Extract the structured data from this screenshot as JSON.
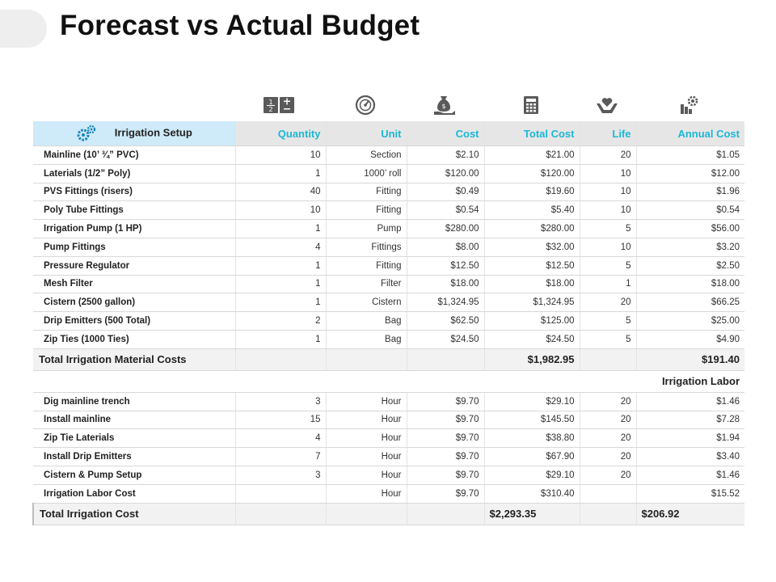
{
  "title": "Forecast vs Actual Budget",
  "header": {
    "first": "Irrigation Setup",
    "columns": [
      "Quantity",
      "Unit",
      "Cost",
      "Total Cost",
      "Life",
      "Annual Cost"
    ]
  },
  "icons": [
    "fraction-calculator-icon",
    "gauge-icon",
    "money-hand-icon",
    "calculator-icon",
    "heart-hand-icon",
    "gear-settings-icon"
  ],
  "materials": [
    {
      "name": "Mainline (10’ ¾” PVC)",
      "qty": "10",
      "unit": "Section",
      "cost": "$2.10",
      "total": "$21.00",
      "life": "20",
      "annual": "$1.05"
    },
    {
      "name": "Laterials (1/2” Poly)",
      "qty": "1",
      "unit": "1000’ roll",
      "cost": "$120.00",
      "total": "$120.00",
      "life": "10",
      "annual": "$12.00"
    },
    {
      "name": "PVS Fittings  (risers)",
      "qty": "40",
      "unit": "Fitting",
      "cost": "$0.49",
      "total": "$19.60",
      "life": "10",
      "annual": "$1.96"
    },
    {
      "name": "Poly Tube Fittings",
      "qty": "10",
      "unit": "Fitting",
      "cost": "$0.54",
      "total": "$5.40",
      "life": "10",
      "annual": "$0.54"
    },
    {
      "name": "Irrigation Pump (1 HP)",
      "qty": "1",
      "unit": "Pump",
      "cost": "$280.00",
      "total": "$280.00",
      "life": "5",
      "annual": "$56.00"
    },
    {
      "name": "Pump Fittings",
      "qty": "4",
      "unit": "Fittings",
      "cost": "$8.00",
      "total": "$32.00",
      "life": "10",
      "annual": "$3.20"
    },
    {
      "name": "Pressure Regulator",
      "qty": "1",
      "unit": "Fitting",
      "cost": "$12.50",
      "total": "$12.50",
      "life": "5",
      "annual": "$2.50"
    },
    {
      "name": "Mesh Filter",
      "qty": "1",
      "unit": "Filter",
      "cost": "$18.00",
      "total": "$18.00",
      "life": "1",
      "annual": "$18.00"
    },
    {
      "name": "Cistern  (2500 gallon)",
      "qty": "1",
      "unit": "Cistern",
      "cost": "$1,324.95",
      "total": "$1,324.95",
      "life": "20",
      "annual": "$66.25"
    },
    {
      "name": "Drip Emitters  (500 Total)",
      "qty": "2",
      "unit": "Bag",
      "cost": "$62.50",
      "total": "$125.00",
      "life": "5",
      "annual": "$25.00"
    },
    {
      "name": "Zip Ties  (1000 Ties)",
      "qty": "1",
      "unit": "Bag",
      "cost": "$24.50",
      "total": "$24.50",
      "life": "5",
      "annual": "$4.90"
    }
  ],
  "material_total": {
    "label": "Total Irrigation Material Costs",
    "total": "$1,982.95",
    "annual": "$191.40"
  },
  "labor_section": "Irrigation Labor",
  "labor": [
    {
      "name": "Dig mainline trench",
      "qty": "3",
      "unit": "Hour",
      "cost": "$9.70",
      "total": "$29.10",
      "life": "20",
      "annual": "$1.46"
    },
    {
      "name": "Install mainline",
      "qty": "15",
      "unit": "Hour",
      "cost": "$9.70",
      "total": "$145.50",
      "life": "20",
      "annual": "$7.28"
    },
    {
      "name": "Zip Tie Laterials",
      "qty": "4",
      "unit": "Hour",
      "cost": "$9.70",
      "total": "$38.80",
      "life": "20",
      "annual": "$1.94"
    },
    {
      "name": "Install Drip Emitters",
      "qty": "7",
      "unit": "Hour",
      "cost": "$9.70",
      "total": "$67.90",
      "life": "20",
      "annual": "$3.40"
    },
    {
      "name": "Cistern & Pump Setup",
      "qty": "3",
      "unit": "Hour",
      "cost": "$9.70",
      "total": "$29.10",
      "life": "20",
      "annual": "$1.46"
    },
    {
      "name": "Irrigation Labor Cost",
      "qty": "",
      "unit": "Hour",
      "cost": "$9.70",
      "total": "$310.40",
      "life": "",
      "annual": "$15.52"
    }
  ],
  "grand_total": {
    "label": "Total Irrigation Cost",
    "total": "$2,293.35",
    "annual": "$206.92"
  },
  "colors": {
    "accent": "#1bb8d5",
    "header_bg": "#e6e6e6",
    "first_header_bg": "#cfeaf8",
    "total_bg": "#f2f2f2",
    "icon": "#5a5a5a"
  }
}
